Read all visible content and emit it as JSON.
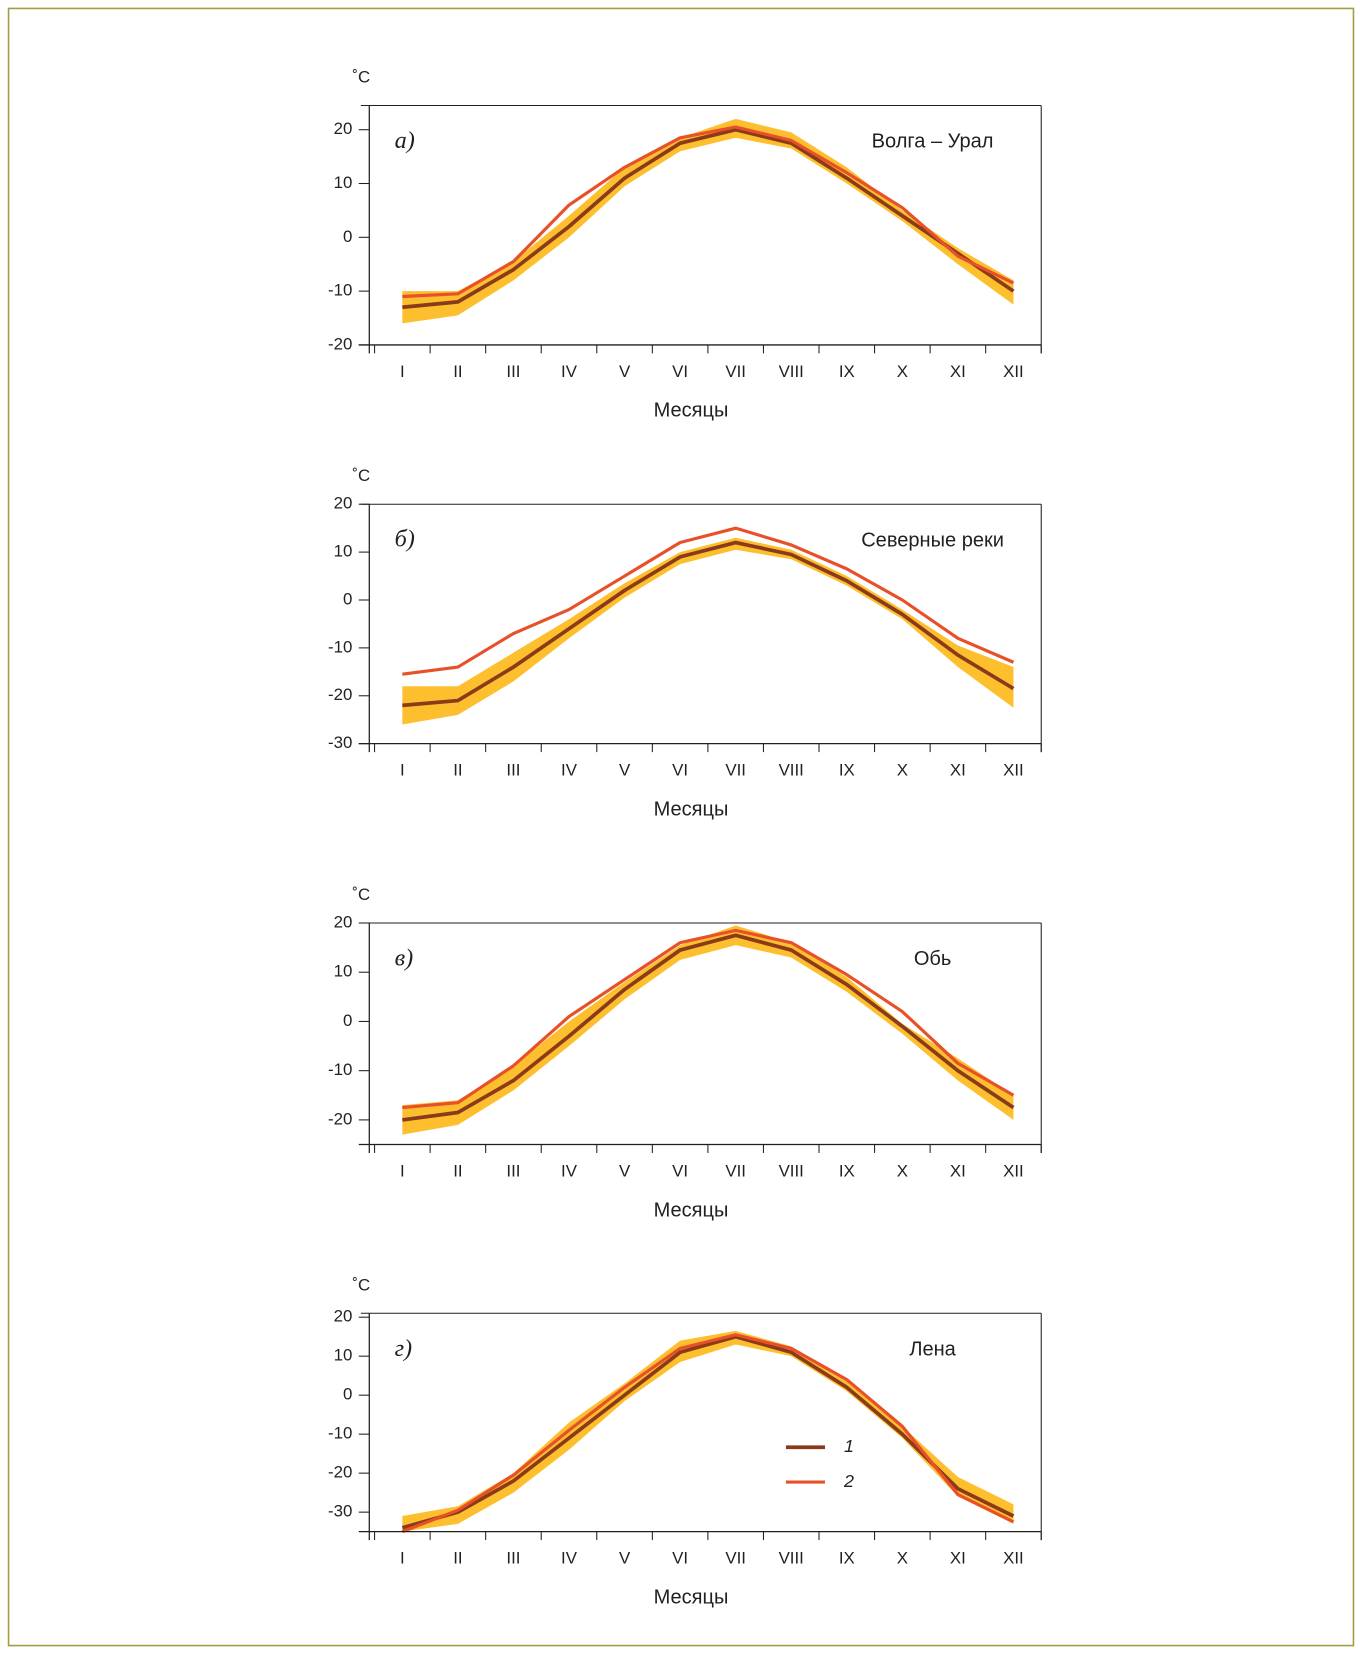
{
  "chart_data": [
    {
      "type": "line",
      "panel_label": "а)",
      "title": "Волга – Урал",
      "ylabel": "˚C",
      "xlabel": "Месяцы",
      "categories": [
        "I",
        "II",
        "III",
        "IV",
        "V",
        "VI",
        "VII",
        "VIII",
        "IX",
        "X",
        "XI",
        "XII"
      ],
      "ylim": [
        -20,
        24.5
      ],
      "yticks": [
        -20,
        -10,
        0,
        10,
        20
      ],
      "band": {
        "color": "#fdbf2d",
        "lower": [
          -16,
          -14.5,
          -8,
          0,
          9.5,
          16,
          18.5,
          16.5,
          10,
          3,
          -5,
          -12.5
        ],
        "upper": [
          -10,
          -10,
          -4.5,
          4,
          13,
          18.5,
          22,
          19.5,
          13,
          5,
          -2,
          -8
        ]
      },
      "series": [
        {
          "color": "#8b3a1a",
          "values": [
            -13,
            -12,
            -6,
            2,
            11,
            17.5,
            20,
            17.5,
            11,
            4,
            -3,
            -10
          ]
        },
        {
          "color": "#e8502a",
          "values": [
            -11,
            -10.5,
            -4.5,
            6,
            13,
            18.5,
            20.5,
            18,
            12,
            5.5,
            -3.5,
            -8.5
          ]
        }
      ]
    },
    {
      "type": "line",
      "panel_label": "б)",
      "title": "Северные реки",
      "ylabel": "˚C",
      "xlabel": "Месяцы",
      "categories": [
        "I",
        "II",
        "III",
        "IV",
        "V",
        "VI",
        "VII",
        "VIII",
        "IX",
        "X",
        "XI",
        "XII"
      ],
      "ylim": [
        -30,
        20
      ],
      "yticks": [
        -30,
        -20,
        -10,
        0,
        10,
        20
      ],
      "band": {
        "color": "#fdbf2d",
        "lower": [
          -26,
          -24,
          -17,
          -8,
          0.5,
          7.5,
          10.5,
          8.5,
          3,
          -4,
          -14,
          -22.5
        ],
        "upper": [
          -18,
          -18,
          -11,
          -4,
          3.5,
          10,
          13,
          10.5,
          5,
          -2,
          -9.5,
          -14
        ]
      },
      "series": [
        {
          "color": "#8b3a1a",
          "values": [
            -22,
            -21,
            -14,
            -6,
            2,
            9,
            12,
            9.5,
            4,
            -3,
            -11.5,
            -18.5
          ]
        },
        {
          "color": "#e8502a",
          "values": [
            -15.5,
            -14,
            -7,
            -2,
            5,
            12,
            15,
            11.5,
            6.5,
            0,
            -8,
            -13
          ]
        }
      ]
    },
    {
      "type": "line",
      "panel_label": "в)",
      "title": "Обь",
      "ylabel": "˚C",
      "xlabel": "Месяцы",
      "categories": [
        "I",
        "II",
        "III",
        "IV",
        "V",
        "VI",
        "VII",
        "VIII",
        "IX",
        "X",
        "XI",
        "XII"
      ],
      "ylim": [
        -25,
        20
      ],
      "yticks": [
        -20,
        -10,
        0,
        10,
        20
      ],
      "band": {
        "color": "#fdbf2d",
        "lower": [
          -23,
          -21,
          -14,
          -5,
          4.5,
          12.5,
          15.5,
          13,
          6,
          -2.5,
          -12,
          -20
        ],
        "upper": [
          -17,
          -16,
          -9,
          0,
          8,
          15.5,
          19.5,
          16,
          9,
          -0.5,
          -7.5,
          -15
        ]
      },
      "series": [
        {
          "color": "#8b3a1a",
          "values": [
            -20,
            -18.5,
            -12,
            -3,
            6.5,
            14.5,
            17.5,
            14.5,
            7.5,
            -1,
            -10,
            -17.5
          ]
        },
        {
          "color": "#e8502a",
          "values": [
            -17.5,
            -16.5,
            -9,
            1,
            8.5,
            16,
            18.5,
            16,
            9.5,
            2,
            -8.5,
            -15
          ]
        }
      ]
    },
    {
      "type": "line",
      "panel_label": "г)",
      "title": "Лена",
      "ylabel": "˚C",
      "xlabel": "Месяцы",
      "categories": [
        "I",
        "II",
        "III",
        "IV",
        "V",
        "VI",
        "VII",
        "VIII",
        "IX",
        "X",
        "XI",
        "XII"
      ],
      "ylim": [
        -35,
        21
      ],
      "yticks": [
        -30,
        -20,
        -10,
        0,
        10,
        20
      ],
      "legend": "lower right",
      "band": {
        "color": "#fdbf2d",
        "lower": [
          -35,
          -33,
          -25,
          -14,
          -1.5,
          8.5,
          13,
          10,
          1,
          -11,
          -26,
          -33
        ],
        "upper": [
          -31,
          -28.5,
          -20,
          -7,
          3,
          14,
          16.5,
          12.5,
          4,
          -8,
          -21,
          -28
        ]
      },
      "series": [
        {
          "name": "1",
          "color": "#8b3a1a",
          "values": [
            -34,
            -30,
            -22,
            -11,
            0,
            11,
            15,
            11,
            2,
            -10,
            -24,
            -31
          ]
        },
        {
          "name": "2",
          "color": "#e8502a",
          "values": [
            -35,
            -29.5,
            -20.5,
            -9,
            2,
            12,
            15.5,
            12,
            4,
            -8,
            -25.5,
            -32.5
          ]
        }
      ]
    }
  ]
}
